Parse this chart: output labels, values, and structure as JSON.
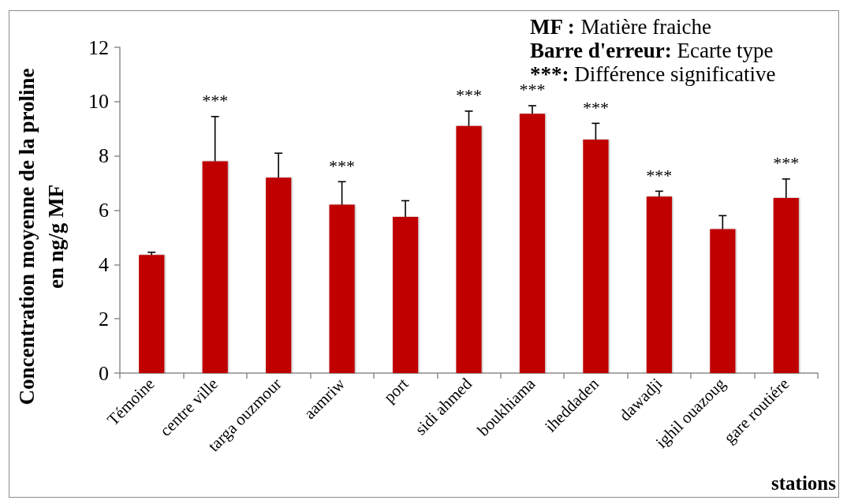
{
  "chart_data": {
    "type": "bar",
    "ylabel": "Concentration moyenne de la proline\nen ng/g MF",
    "xlabel": "stations",
    "categories": [
      "Témoine",
      "centre ville",
      "targa ouzmour",
      "aamriw",
      "port",
      "sidi ahmed",
      "boukhiama",
      "iheddaden",
      "dawadji",
      "ighil ouazoug",
      "gare routiére"
    ],
    "values": [
      4.35,
      7.8,
      7.2,
      6.2,
      5.75,
      9.1,
      9.55,
      8.6,
      6.5,
      5.3,
      6.45
    ],
    "errors": [
      [
        4.35,
        4.45
      ],
      [
        7.8,
        9.45
      ],
      [
        7.2,
        8.1
      ],
      [
        6.2,
        7.05
      ],
      [
        5.75,
        6.35
      ],
      [
        9.1,
        9.65
      ],
      [
        9.55,
        9.85
      ],
      [
        8.6,
        9.2
      ],
      [
        6.5,
        6.7
      ],
      [
        5.3,
        5.8
      ],
      [
        6.45,
        7.15
      ]
    ],
    "color": "#c00000",
    "ylim": [
      0,
      12
    ],
    "yticks": [
      0,
      2,
      4,
      6,
      8,
      10,
      12
    ],
    "grid": false,
    "annotations": [
      "MF : Matière fraiche",
      "Barre d'erreur: Ecarte type",
      "***: Différence significative",
      {
        "text": "***",
        "x": "centre ville",
        "y": 9.45
      },
      {
        "text": "***",
        "x": "aamriw",
        "y": 7.05
      },
      {
        "text": "***",
        "x": "sidi ahmed",
        "y": 9.65
      },
      {
        "text": "***",
        "x": "boukhiama",
        "y": 9.85
      },
      {
        "text": "***",
        "x": "iheddaden",
        "y": 9.2
      },
      {
        "text": "***",
        "x": "dawadji",
        "y": 6.7
      },
      {
        "text": "***",
        "x": "gare routiére",
        "y": 7.15
      }
    ]
  }
}
